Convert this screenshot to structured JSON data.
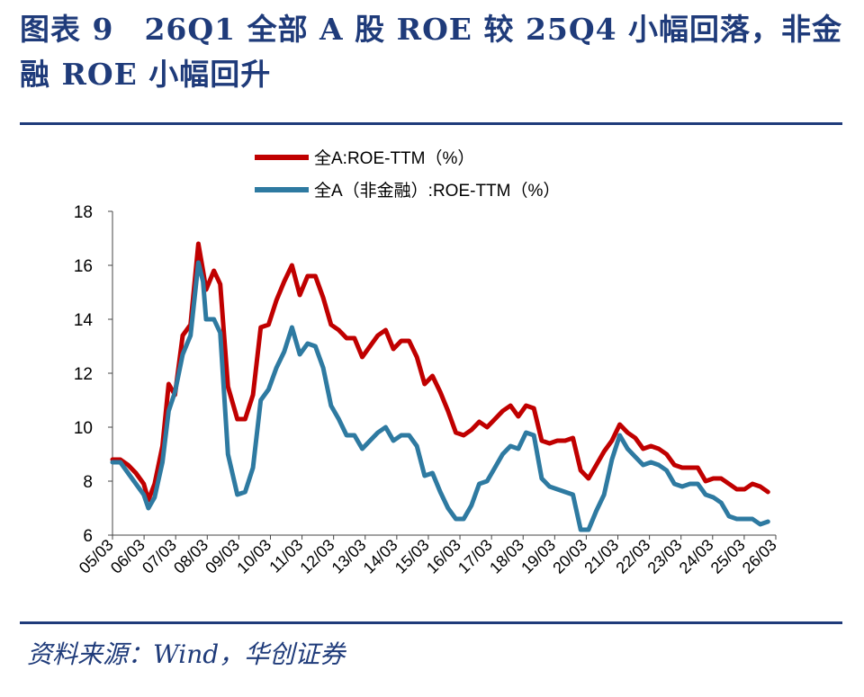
{
  "title": "图表 9　26Q1 全部 A 股 ROE 较 25Q4 小幅回落，非金融 ROE 小幅回升",
  "source": "资料来源：Wind，华创证券",
  "chart_data": {
    "type": "line",
    "ylim": [
      6,
      18
    ],
    "y_ticks": [
      6,
      8,
      10,
      12,
      14,
      16,
      18
    ],
    "x_range": [
      2005.0,
      2026.25
    ],
    "x_ticks": [
      "05/03",
      "06/03",
      "07/03",
      "08/03",
      "09/03",
      "10/03",
      "11/03",
      "12/03",
      "13/03",
      "14/03",
      "15/03",
      "16/03",
      "17/03",
      "18/03",
      "19/03",
      "20/03",
      "21/03",
      "22/03",
      "23/03",
      "24/03",
      "25/03",
      "26/03"
    ],
    "grid": false,
    "legend_position": "top-center",
    "series": [
      {
        "name": "全A:ROE-TTM（%）",
        "color": "#c00000",
        "points": [
          [
            2005.0,
            8.8
          ],
          [
            2005.25,
            8.8
          ],
          [
            2005.5,
            8.6
          ],
          [
            2005.75,
            8.3
          ],
          [
            2006.0,
            7.9
          ],
          [
            2006.15,
            7.3
          ],
          [
            2006.35,
            7.9
          ],
          [
            2006.6,
            9.3
          ],
          [
            2006.8,
            11.6
          ],
          [
            2007.0,
            11.2
          ],
          [
            2007.25,
            13.4
          ],
          [
            2007.5,
            13.8
          ],
          [
            2007.75,
            16.8
          ],
          [
            2007.9,
            15.8
          ],
          [
            2008.0,
            15.1
          ],
          [
            2008.25,
            15.8
          ],
          [
            2008.45,
            15.3
          ],
          [
            2008.7,
            11.5
          ],
          [
            2009.0,
            10.3
          ],
          [
            2009.25,
            10.3
          ],
          [
            2009.5,
            11.2
          ],
          [
            2009.75,
            13.7
          ],
          [
            2010.0,
            13.8
          ],
          [
            2010.25,
            14.7
          ],
          [
            2010.5,
            15.4
          ],
          [
            2010.75,
            16.0
          ],
          [
            2011.0,
            14.9
          ],
          [
            2011.25,
            15.6
          ],
          [
            2011.5,
            15.6
          ],
          [
            2011.75,
            14.8
          ],
          [
            2012.0,
            13.8
          ],
          [
            2012.25,
            13.6
          ],
          [
            2012.5,
            13.3
          ],
          [
            2012.75,
            13.3
          ],
          [
            2013.0,
            12.6
          ],
          [
            2013.25,
            13.0
          ],
          [
            2013.5,
            13.4
          ],
          [
            2013.75,
            13.6
          ],
          [
            2014.0,
            12.9
          ],
          [
            2014.25,
            13.2
          ],
          [
            2014.5,
            13.2
          ],
          [
            2014.75,
            12.6
          ],
          [
            2015.0,
            11.6
          ],
          [
            2015.25,
            11.9
          ],
          [
            2015.5,
            11.3
          ],
          [
            2015.75,
            10.6
          ],
          [
            2016.0,
            9.8
          ],
          [
            2016.25,
            9.7
          ],
          [
            2016.5,
            9.9
          ],
          [
            2016.75,
            10.2
          ],
          [
            2017.0,
            10.0
          ],
          [
            2017.25,
            10.3
          ],
          [
            2017.5,
            10.6
          ],
          [
            2017.75,
            10.8
          ],
          [
            2018.0,
            10.4
          ],
          [
            2018.25,
            10.8
          ],
          [
            2018.5,
            10.7
          ],
          [
            2018.75,
            9.5
          ],
          [
            2019.0,
            9.4
          ],
          [
            2019.25,
            9.5
          ],
          [
            2019.5,
            9.5
          ],
          [
            2019.75,
            9.6
          ],
          [
            2020.0,
            8.4
          ],
          [
            2020.25,
            8.1
          ],
          [
            2020.5,
            8.6
          ],
          [
            2020.75,
            9.1
          ],
          [
            2021.0,
            9.5
          ],
          [
            2021.25,
            10.1
          ],
          [
            2021.5,
            9.8
          ],
          [
            2021.75,
            9.6
          ],
          [
            2022.0,
            9.2
          ],
          [
            2022.25,
            9.3
          ],
          [
            2022.5,
            9.2
          ],
          [
            2022.75,
            9.0
          ],
          [
            2023.0,
            8.6
          ],
          [
            2023.25,
            8.5
          ],
          [
            2023.5,
            8.5
          ],
          [
            2023.75,
            8.5
          ],
          [
            2024.0,
            8.0
          ],
          [
            2024.25,
            8.1
          ],
          [
            2024.5,
            8.1
          ],
          [
            2024.75,
            7.9
          ],
          [
            2025.0,
            7.7
          ],
          [
            2025.25,
            7.7
          ],
          [
            2025.5,
            7.9
          ],
          [
            2025.75,
            7.8
          ],
          [
            2026.0,
            7.6
          ]
        ]
      },
      {
        "name": "全A（非金融）:ROE-TTM（%）",
        "color": "#2e7aa1",
        "points": [
          [
            2005.0,
            8.7
          ],
          [
            2005.25,
            8.7
          ],
          [
            2005.5,
            8.3
          ],
          [
            2005.75,
            7.9
          ],
          [
            2006.0,
            7.5
          ],
          [
            2006.15,
            7.0
          ],
          [
            2006.35,
            7.4
          ],
          [
            2006.6,
            8.7
          ],
          [
            2006.8,
            10.6
          ],
          [
            2007.0,
            11.3
          ],
          [
            2007.25,
            12.7
          ],
          [
            2007.5,
            13.4
          ],
          [
            2007.75,
            16.1
          ],
          [
            2007.9,
            15.4
          ],
          [
            2008.0,
            14.0
          ],
          [
            2008.25,
            14.0
          ],
          [
            2008.45,
            13.5
          ],
          [
            2008.7,
            9.0
          ],
          [
            2009.0,
            7.5
          ],
          [
            2009.25,
            7.6
          ],
          [
            2009.5,
            8.5
          ],
          [
            2009.75,
            11.0
          ],
          [
            2010.0,
            11.4
          ],
          [
            2010.25,
            12.2
          ],
          [
            2010.5,
            12.8
          ],
          [
            2010.75,
            13.7
          ],
          [
            2011.0,
            12.7
          ],
          [
            2011.25,
            13.1
          ],
          [
            2011.5,
            13.0
          ],
          [
            2011.75,
            12.2
          ],
          [
            2012.0,
            10.8
          ],
          [
            2012.25,
            10.3
          ],
          [
            2012.5,
            9.7
          ],
          [
            2012.75,
            9.7
          ],
          [
            2013.0,
            9.2
          ],
          [
            2013.25,
            9.5
          ],
          [
            2013.5,
            9.8
          ],
          [
            2013.75,
            10.0
          ],
          [
            2014.0,
            9.5
          ],
          [
            2014.25,
            9.7
          ],
          [
            2014.5,
            9.7
          ],
          [
            2014.75,
            9.3
          ],
          [
            2015.0,
            8.2
          ],
          [
            2015.25,
            8.3
          ],
          [
            2015.5,
            7.6
          ],
          [
            2015.75,
            7.0
          ],
          [
            2016.0,
            6.6
          ],
          [
            2016.25,
            6.6
          ],
          [
            2016.5,
            7.1
          ],
          [
            2016.75,
            7.9
          ],
          [
            2017.0,
            8.0
          ],
          [
            2017.25,
            8.5
          ],
          [
            2017.5,
            9.0
          ],
          [
            2017.75,
            9.3
          ],
          [
            2018.0,
            9.2
          ],
          [
            2018.25,
            9.8
          ],
          [
            2018.5,
            9.7
          ],
          [
            2018.75,
            8.1
          ],
          [
            2019.0,
            7.8
          ],
          [
            2019.25,
            7.7
          ],
          [
            2019.5,
            7.6
          ],
          [
            2019.75,
            7.5
          ],
          [
            2020.0,
            6.2
          ],
          [
            2020.25,
            6.2
          ],
          [
            2020.5,
            6.9
          ],
          [
            2020.75,
            7.5
          ],
          [
            2021.0,
            8.8
          ],
          [
            2021.25,
            9.7
          ],
          [
            2021.5,
            9.2
          ],
          [
            2021.75,
            8.9
          ],
          [
            2022.0,
            8.6
          ],
          [
            2022.25,
            8.7
          ],
          [
            2022.5,
            8.6
          ],
          [
            2022.75,
            8.4
          ],
          [
            2023.0,
            7.9
          ],
          [
            2023.25,
            7.8
          ],
          [
            2023.5,
            7.9
          ],
          [
            2023.75,
            7.9
          ],
          [
            2024.0,
            7.5
          ],
          [
            2024.25,
            7.4
          ],
          [
            2024.5,
            7.2
          ],
          [
            2024.75,
            6.7
          ],
          [
            2025.0,
            6.6
          ],
          [
            2025.25,
            6.6
          ],
          [
            2025.5,
            6.6
          ],
          [
            2025.75,
            6.4
          ],
          [
            2026.0,
            6.5
          ]
        ]
      }
    ]
  }
}
